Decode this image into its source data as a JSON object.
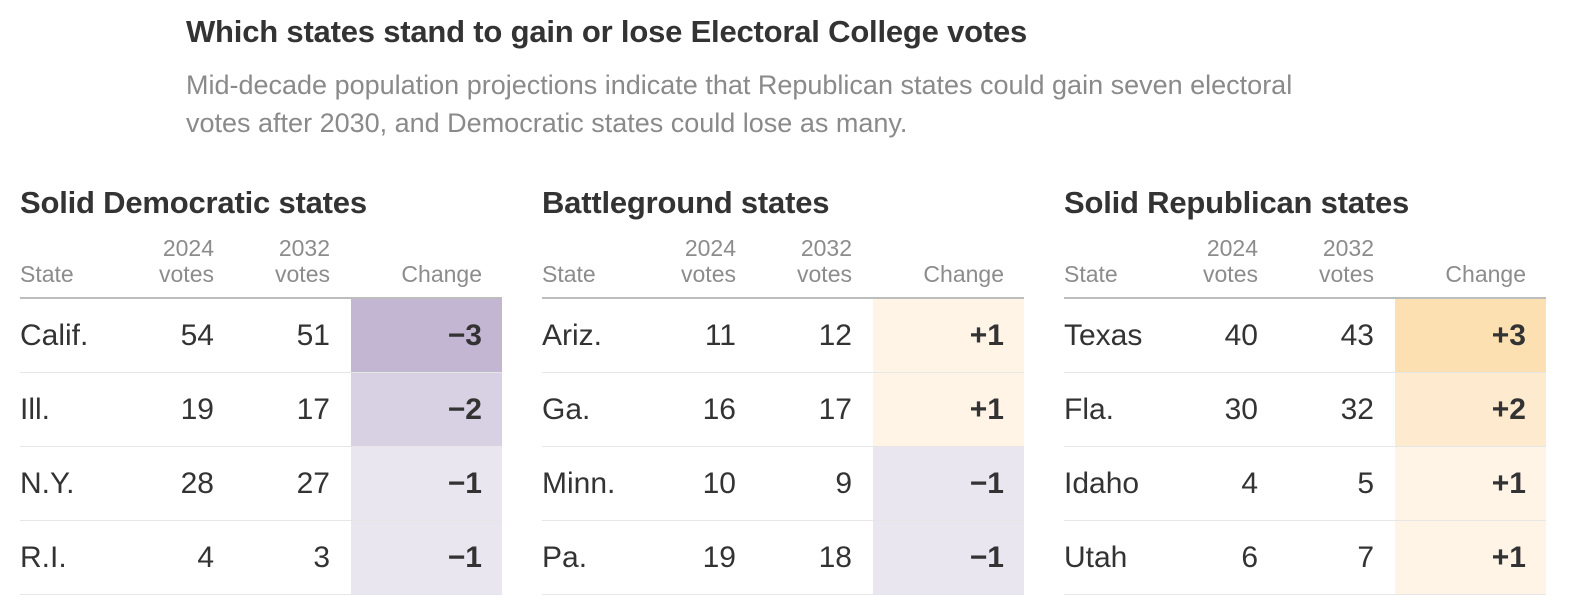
{
  "title": "Which states stand to gain or lose Electoral College votes",
  "subtitle_line1": "Mid-decade population projections indicate that Republican states could gain seven electoral",
  "subtitle_line2": "votes after 2030, and Democratic states could lose as many.",
  "columns": {
    "state": "State",
    "v2024_top": "2024",
    "v2024_bottom": "votes",
    "v2032_top": "2032",
    "v2032_bottom": "votes",
    "change": "Change"
  },
  "colors": {
    "loss3": "#c3b6d3",
    "loss2": "#d8d1e3",
    "loss1": "#e9e6ef",
    "gain3": "#fde0b2",
    "gain2": "#feebcf",
    "gain1": "#fff4e6"
  },
  "chart_data": {
    "type": "table",
    "title": "Which states stand to gain or lose Electoral College votes",
    "panels": [
      {
        "title": "Solid Democratic states",
        "rows": [
          {
            "state": "Calif.",
            "v2024": 54,
            "v2032": 51,
            "change": -3,
            "change_label": "−3"
          },
          {
            "state": "Ill.",
            "v2024": 19,
            "v2032": 17,
            "change": -2,
            "change_label": "−2"
          },
          {
            "state": "N.Y.",
            "v2024": 28,
            "v2032": 27,
            "change": -1,
            "change_label": "−1"
          },
          {
            "state": "R.I.",
            "v2024": 4,
            "v2032": 3,
            "change": -1,
            "change_label": "−1"
          }
        ]
      },
      {
        "title": "Battleground states",
        "rows": [
          {
            "state": "Ariz.",
            "v2024": 11,
            "v2032": 12,
            "change": 1,
            "change_label": "+1"
          },
          {
            "state": "Ga.",
            "v2024": 16,
            "v2032": 17,
            "change": 1,
            "change_label": "+1"
          },
          {
            "state": "Minn.",
            "v2024": 10,
            "v2032": 9,
            "change": -1,
            "change_label": "−1"
          },
          {
            "state": "Pa.",
            "v2024": 19,
            "v2032": 18,
            "change": -1,
            "change_label": "−1"
          }
        ]
      },
      {
        "title": "Solid Republican states",
        "rows": [
          {
            "state": "Texas",
            "v2024": 40,
            "v2032": 43,
            "change": 3,
            "change_label": "+3"
          },
          {
            "state": "Fla.",
            "v2024": 30,
            "v2032": 32,
            "change": 2,
            "change_label": "+2"
          },
          {
            "state": "Idaho",
            "v2024": 4,
            "v2032": 5,
            "change": 1,
            "change_label": "+1"
          },
          {
            "state": "Utah",
            "v2024": 6,
            "v2032": 7,
            "change": 1,
            "change_label": "+1"
          }
        ]
      }
    ]
  }
}
